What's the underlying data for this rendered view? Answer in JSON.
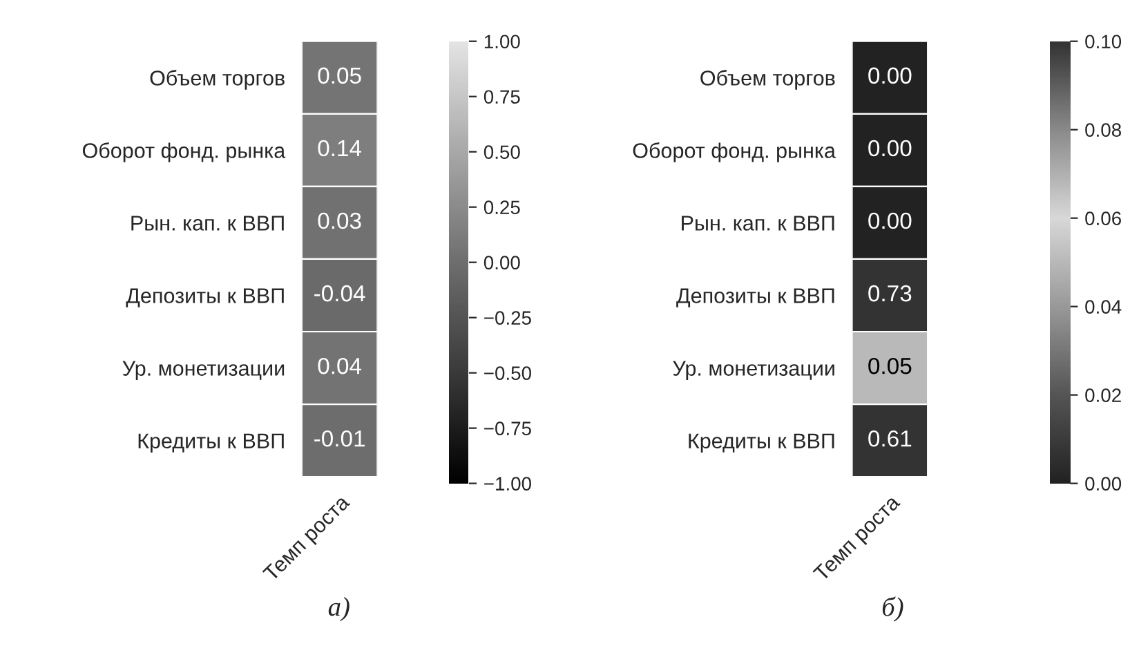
{
  "chart_data": [
    {
      "type": "heatmap",
      "categories": [
        "Темп роста"
      ],
      "y_categories": [
        "Объем торгов",
        "Оборот фонд. рынка",
        "Рын. кап. к ВВП",
        "Депозиты к ВВП",
        "Ур. монетизации",
        "Кредиты к ВВП"
      ],
      "cells": [
        [
          0.05
        ],
        [
          0.14
        ],
        [
          0.03
        ],
        [
          -0.04
        ],
        [
          0.04
        ],
        [
          -0.01
        ]
      ],
      "cell_labels": [
        [
          "0.05"
        ],
        [
          "0.14"
        ],
        [
          "0.03"
        ],
        [
          "-0.04"
        ],
        [
          "0.04"
        ],
        [
          "-0.01"
        ]
      ],
      "clim": [
        -1,
        1
      ],
      "cticks": [
        {
          "value": 1,
          "label": "1.00"
        },
        {
          "value": 0.75,
          "label": "0.75"
        },
        {
          "value": 0.5,
          "label": "0.50"
        },
        {
          "value": 0.25,
          "label": "0.25"
        },
        {
          "value": 0,
          "label": "0.00"
        },
        {
          "value": -0.25,
          "label": "−0.25"
        },
        {
          "value": -0.5,
          "label": "−0.50"
        },
        {
          "value": -0.75,
          "label": "−0.75"
        },
        {
          "value": -1,
          "label": "−1.00"
        }
      ],
      "data_labels": true,
      "annotations": [
        "а)"
      ]
    },
    {
      "type": "heatmap",
      "categories": [
        "Темп роста"
      ],
      "y_categories": [
        "Объем торгов",
        "Оборот фонд. рынка",
        "Рын. кап. к ВВП",
        "Депозиты к ВВП",
        "Ур. монетизации",
        "Кредиты к ВВП"
      ],
      "cells": [
        [
          0.0
        ],
        [
          0.0
        ],
        [
          0.0
        ],
        [
          0.73
        ],
        [
          0.05
        ],
        [
          0.61
        ]
      ],
      "cell_labels": [
        [
          "0.00"
        ],
        [
          "0.00"
        ],
        [
          "0.00"
        ],
        [
          "0.73"
        ],
        [
          "0.05"
        ],
        [
          "0.61"
        ]
      ],
      "clim": [
        0,
        0.1
      ],
      "cticks": [
        {
          "value": 0.1,
          "label": "0.10"
        },
        {
          "value": 0.08,
          "label": "0.08"
        },
        {
          "value": 0.06,
          "label": "0.06"
        },
        {
          "value": 0.04,
          "label": "0.04"
        },
        {
          "value": 0.02,
          "label": "0.02"
        },
        {
          "value": 0,
          "label": "0.00"
        }
      ],
      "data_labels": true,
      "annotations": [
        "б)"
      ]
    }
  ]
}
